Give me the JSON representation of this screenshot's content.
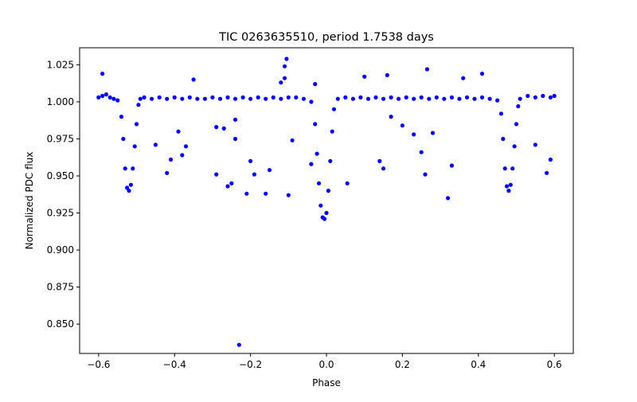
{
  "chart_data": {
    "type": "scatter",
    "title": "TIC 0263635510, period 1.7538 days",
    "xlabel": "Phase",
    "ylabel": "Normalized PDC flux",
    "xlim": [
      -0.65,
      0.65
    ],
    "ylim": [
      0.8302,
      1.0365
    ],
    "xticks": [
      -0.6,
      -0.4,
      -0.2,
      0.0,
      0.2,
      0.4,
      0.6
    ],
    "xtick_labels": [
      "−0.6",
      "−0.4",
      "−0.2",
      "0.0",
      "0.2",
      "0.4",
      "0.6"
    ],
    "yticks": [
      0.85,
      0.875,
      0.9,
      0.925,
      0.95,
      0.975,
      1.0,
      1.025
    ],
    "ytick_labels": [
      "0.850",
      "0.875",
      "0.900",
      "0.925",
      "0.950",
      "0.975",
      "1.000",
      "1.025"
    ],
    "grid": false,
    "marker_color": "#0000ff",
    "series": [
      {
        "name": "PDC flux",
        "points": [
          [
            -0.6,
            1.003
          ],
          [
            -0.59,
            1.004
          ],
          [
            -0.58,
            1.005
          ],
          [
            -0.57,
            1.003
          ],
          [
            -0.56,
            1.002
          ],
          [
            -0.55,
            1.001
          ],
          [
            -0.54,
            0.99
          ],
          [
            -0.535,
            0.975
          ],
          [
            -0.53,
            0.955
          ],
          [
            -0.525,
            0.942
          ],
          [
            -0.52,
            0.94
          ],
          [
            -0.515,
            0.944
          ],
          [
            -0.51,
            0.955
          ],
          [
            -0.505,
            0.97
          ],
          [
            -0.5,
            0.985
          ],
          [
            -0.495,
            0.998
          ],
          [
            -0.49,
            1.002
          ],
          [
            -0.48,
            1.003
          ],
          [
            -0.46,
            1.002
          ],
          [
            -0.44,
            1.003
          ],
          [
            -0.42,
            1.002
          ],
          [
            -0.4,
            1.003
          ],
          [
            -0.38,
            1.002
          ],
          [
            -0.36,
            1.003
          ],
          [
            -0.34,
            1.002
          ],
          [
            -0.32,
            1.002
          ],
          [
            -0.3,
            1.003
          ],
          [
            -0.28,
            1.002
          ],
          [
            -0.26,
            1.003
          ],
          [
            -0.24,
            1.002
          ],
          [
            -0.22,
            1.003
          ],
          [
            -0.2,
            1.002
          ],
          [
            -0.18,
            1.003
          ],
          [
            -0.16,
            1.002
          ],
          [
            -0.14,
            1.003
          ],
          [
            -0.12,
            1.002
          ],
          [
            -0.1,
            1.003
          ],
          [
            -0.08,
            1.003
          ],
          [
            -0.06,
            1.002
          ],
          [
            -0.04,
            1.0
          ],
          [
            -0.03,
            0.985
          ],
          [
            -0.025,
            0.965
          ],
          [
            -0.02,
            0.945
          ],
          [
            -0.015,
            0.93
          ],
          [
            -0.01,
            0.922
          ],
          [
            -0.005,
            0.921
          ],
          [
            0.0,
            0.925
          ],
          [
            0.005,
            0.94
          ],
          [
            0.01,
            0.96
          ],
          [
            0.015,
            0.98
          ],
          [
            0.02,
            0.995
          ],
          [
            0.03,
            1.002
          ],
          [
            0.05,
            1.003
          ],
          [
            0.07,
            1.002
          ],
          [
            0.09,
            1.003
          ],
          [
            0.11,
            1.002
          ],
          [
            0.13,
            1.003
          ],
          [
            0.15,
            1.002
          ],
          [
            0.17,
            1.003
          ],
          [
            0.19,
            1.002
          ],
          [
            0.21,
            1.003
          ],
          [
            0.23,
            1.002
          ],
          [
            0.25,
            1.003
          ],
          [
            0.27,
            1.002
          ],
          [
            0.29,
            1.003
          ],
          [
            0.31,
            1.002
          ],
          [
            0.33,
            1.003
          ],
          [
            0.35,
            1.002
          ],
          [
            0.37,
            1.003
          ],
          [
            0.39,
            1.002
          ],
          [
            0.41,
            1.003
          ],
          [
            0.43,
            1.002
          ],
          [
            0.45,
            1.001
          ],
          [
            0.46,
            0.992
          ],
          [
            0.465,
            0.975
          ],
          [
            0.47,
            0.955
          ],
          [
            0.475,
            0.943
          ],
          [
            0.48,
            0.94
          ],
          [
            0.485,
            0.944
          ],
          [
            0.49,
            0.955
          ],
          [
            0.495,
            0.97
          ],
          [
            0.5,
            0.985
          ],
          [
            0.505,
            0.997
          ],
          [
            0.51,
            1.002
          ],
          [
            0.53,
            1.004
          ],
          [
            0.55,
            1.003
          ],
          [
            0.57,
            1.004
          ],
          [
            0.59,
            1.003
          ],
          [
            0.6,
            1.004
          ],
          [
            -0.59,
            1.019
          ],
          [
            -0.45,
            0.971
          ],
          [
            -0.42,
            0.952
          ],
          [
            -0.41,
            0.961
          ],
          [
            -0.39,
            0.98
          ],
          [
            -0.38,
            0.964
          ],
          [
            -0.37,
            0.97
          ],
          [
            -0.35,
            1.015
          ],
          [
            -0.29,
            0.983
          ],
          [
            -0.29,
            0.951
          ],
          [
            -0.27,
            0.982
          ],
          [
            -0.26,
            0.943
          ],
          [
            -0.25,
            0.945
          ],
          [
            -0.24,
            0.975
          ],
          [
            -0.24,
            0.988
          ],
          [
            -0.23,
            0.836
          ],
          [
            -0.21,
            0.938
          ],
          [
            -0.2,
            0.96
          ],
          [
            -0.19,
            0.951
          ],
          [
            -0.16,
            0.938
          ],
          [
            -0.15,
            0.954
          ],
          [
            -0.12,
            1.013
          ],
          [
            -0.11,
            1.016
          ],
          [
            -0.11,
            1.024
          ],
          [
            -0.105,
            1.029
          ],
          [
            -0.1,
            0.937
          ],
          [
            -0.09,
            0.974
          ],
          [
            -0.04,
            0.958
          ],
          [
            -0.03,
            1.012
          ],
          [
            0.055,
            0.945
          ],
          [
            0.1,
            1.017
          ],
          [
            0.14,
            0.96
          ],
          [
            0.15,
            0.955
          ],
          [
            0.16,
            1.018
          ],
          [
            0.17,
            0.99
          ],
          [
            0.2,
            0.984
          ],
          [
            0.23,
            0.978
          ],
          [
            0.25,
            0.966
          ],
          [
            0.26,
            0.951
          ],
          [
            0.265,
            1.022
          ],
          [
            0.28,
            0.979
          ],
          [
            0.32,
            0.935
          ],
          [
            0.33,
            0.957
          ],
          [
            0.36,
            1.016
          ],
          [
            0.41,
            1.019
          ],
          [
            0.55,
            0.971
          ],
          [
            0.58,
            0.952
          ],
          [
            0.59,
            0.961
          ]
        ]
      }
    ]
  }
}
